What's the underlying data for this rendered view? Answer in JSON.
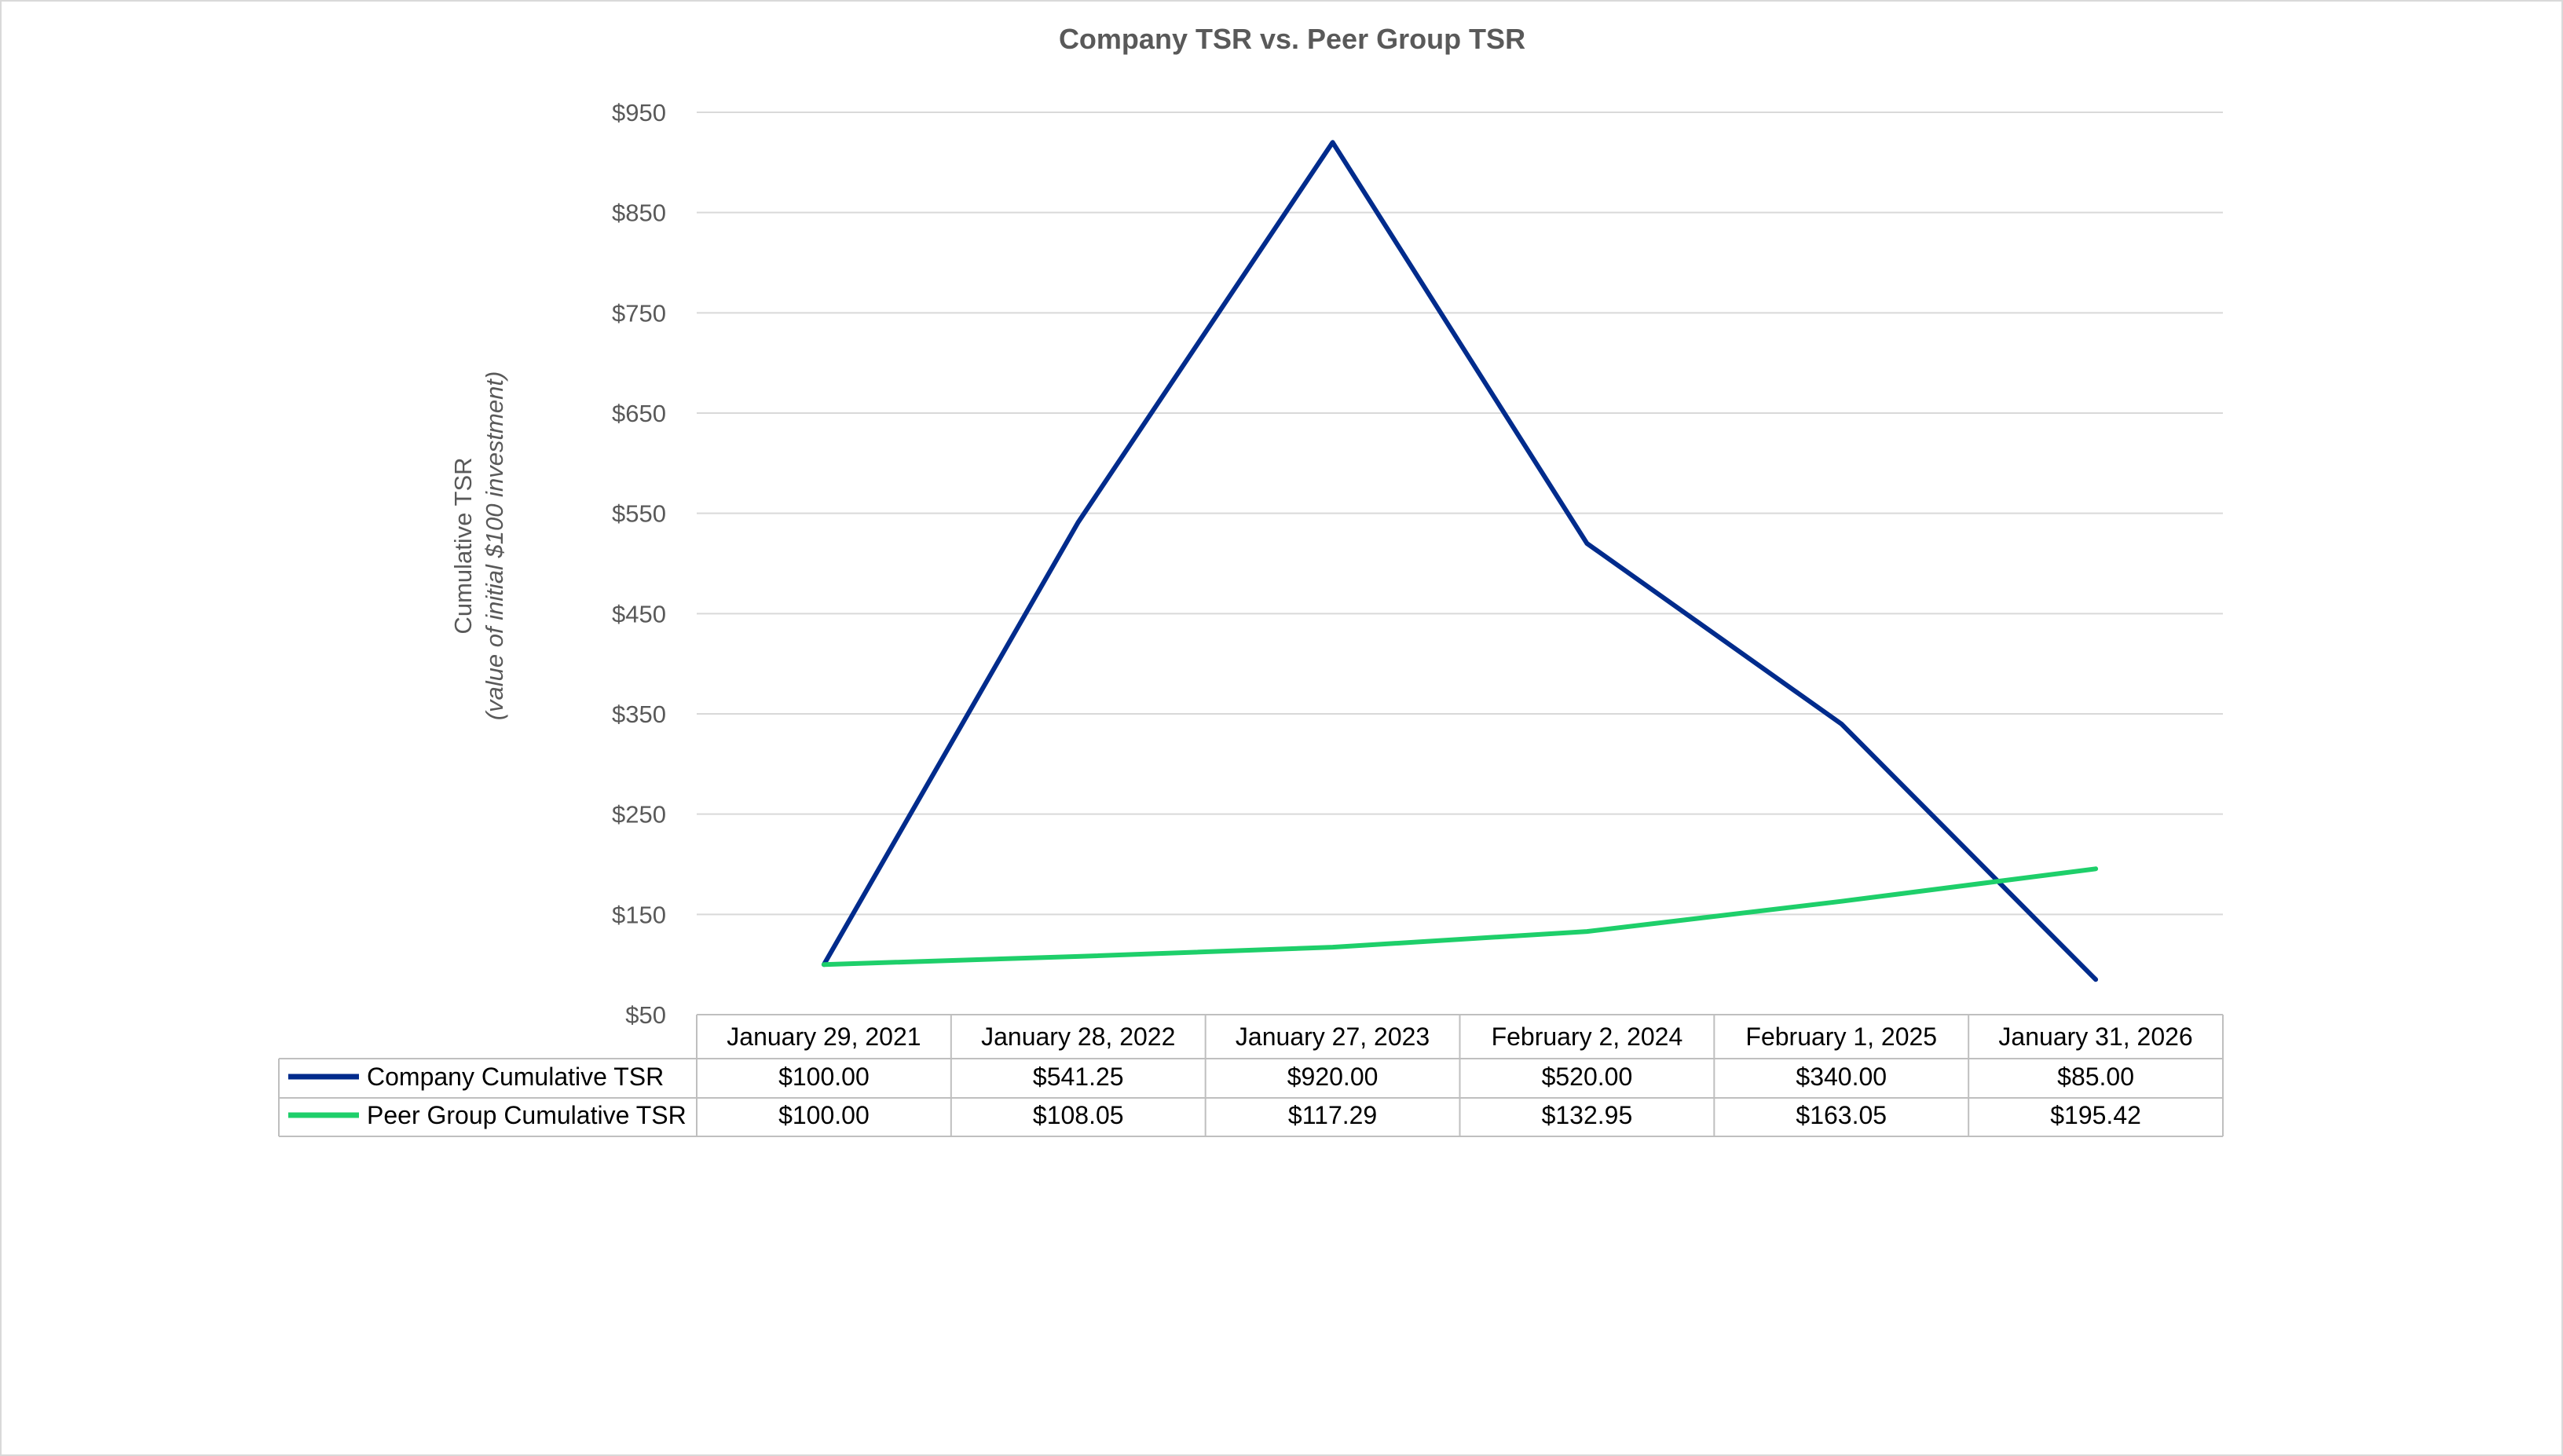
{
  "chart_data": {
    "type": "line",
    "title": "Company TSR vs. Peer Group TSR",
    "ylabel": "Cumulative  TSR",
    "ylabel_sub": "(value  of initial  $100 investment)",
    "xlabel": "",
    "ylim": [
      50,
      950
    ],
    "yticks": [
      50,
      150,
      250,
      350,
      450,
      550,
      650,
      750,
      850,
      950
    ],
    "ytick_prefix": "$",
    "grid": true,
    "legend": "data-table-left",
    "categories": [
      "January 29, 2021",
      "January 28, 2022",
      "January 27, 2023",
      "February 2, 2024",
      "February 1, 2025",
      "January 31, 2026"
    ],
    "series": [
      {
        "name": "Company Cumulative TSR",
        "color": "#002b8c",
        "values": [
          100.0,
          541.25,
          920.0,
          520.0,
          340.0,
          85.0
        ],
        "labels": [
          "$100.00",
          "$541.25",
          "$920.00",
          "$520.00",
          "$340.00",
          "$85.00"
        ]
      },
      {
        "name": "Peer Group Cumulative TSR",
        "color": "#1ecf6a",
        "values": [
          100.0,
          108.05,
          117.29,
          132.95,
          163.05,
          195.42
        ],
        "labels": [
          "$100.00",
          "$108.05",
          "$117.29",
          "$132.95",
          "$163.05",
          "$195.42"
        ]
      }
    ],
    "gridline_color": "#d9d9d9",
    "table_border_color": "#bfbfbf",
    "text_color": "#595959"
  }
}
